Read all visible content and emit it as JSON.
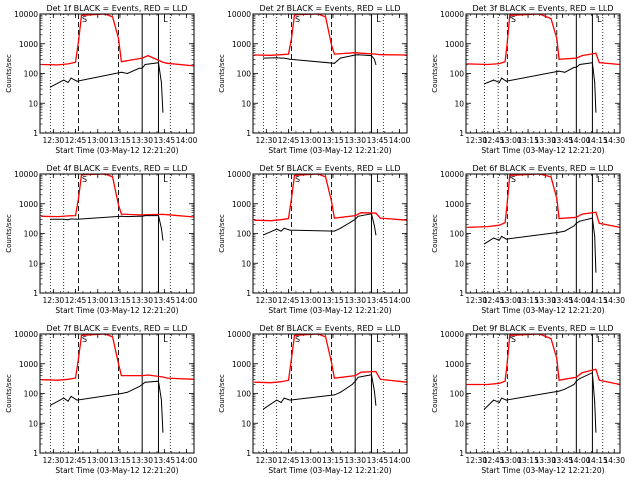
{
  "chart_data": [
    {
      "type": "line",
      "title": "Det 1f BLACK = Events, RED = LLD",
      "xlabel": "Start Time (03-May-12 12:21:20)",
      "ylabel": "Counts/sec",
      "yscale": "log",
      "ylim": [
        1,
        10000
      ],
      "xlim": [
        "12:21",
        "14:05"
      ],
      "x_ticks": [
        "12:30",
        "12:45",
        "13:00",
        "13:15",
        "13:30",
        "13:45",
        "14:00"
      ],
      "y_ticks": [
        "1",
        "10",
        "100",
        "1000",
        "10000"
      ],
      "markers": {
        "dotted": [
          "12:28",
          "12:37",
          "13:49"
        ],
        "dashed": [
          "12:47",
          "13:14"
        ],
        "solid": [
          "13:30",
          "13:41"
        ],
        "top_labels": [
          "S",
          "L"
        ]
      },
      "series": [
        {
          "color": "#ff0000",
          "x": [
            "12:22",
            "12:33",
            "12:40",
            "12:45",
            "12:47",
            "12:49",
            "13:05",
            "13:10",
            "13:14",
            "13:16",
            "13:30",
            "13:34",
            "13:44",
            "13:47",
            "14:05"
          ],
          "y": [
            200,
            195,
            210,
            240,
            1200,
            9000,
            11000,
            8000,
            1500,
            250,
            330,
            400,
            240,
            220,
            180
          ]
        },
        {
          "color": "#000000",
          "x": [
            "12:28",
            "12:37",
            "12:40",
            "12:42",
            "12:46",
            "13:16",
            "13:20",
            "13:28",
            "13:30",
            "13:32",
            "13:41",
            "13:43",
            "13:44"
          ],
          "y": [
            35,
            60,
            50,
            70,
            55,
            110,
            100,
            150,
            150,
            200,
            230,
            50,
            5
          ]
        }
      ]
    },
    {
      "type": "line",
      "title": "Det 2f BLACK = Events, RED = LLD",
      "xlabel": "Start Time (03-May-12 12:21:20)",
      "ylabel": "Counts/sec",
      "yscale": "log",
      "ylim": [
        1,
        10000
      ],
      "xlim": [
        "12:21",
        "14:05"
      ],
      "x_ticks": [
        "12:30",
        "12:45",
        "13:00",
        "13:15",
        "13:30",
        "13:45",
        "14:00"
      ],
      "y_ticks": [
        "1",
        "10",
        "100",
        "1000",
        "10000"
      ],
      "markers": {
        "dotted": [
          "12:28",
          "12:37",
          "13:49"
        ],
        "dashed": [
          "12:47",
          "13:14"
        ],
        "solid": [
          "13:30",
          "13:41"
        ],
        "top_labels": [
          "S",
          "L"
        ]
      },
      "series": [
        {
          "color": "#ff0000",
          "x": [
            "12:22",
            "12:33",
            "12:40",
            "12:45",
            "12:47",
            "12:49",
            "13:05",
            "13:10",
            "13:14",
            "13:16",
            "13:30",
            "13:34",
            "13:44",
            "13:47",
            "14:05"
          ],
          "y": [
            420,
            410,
            430,
            450,
            1500,
            9500,
            11000,
            8000,
            900,
            450,
            500,
            480,
            450,
            430,
            420
          ]
        },
        {
          "color": "#000000",
          "x": [
            "12:28",
            "12:37",
            "12:40",
            "12:42",
            "12:46",
            "13:16",
            "13:20",
            "13:28",
            "13:30",
            "13:32",
            "13:41",
            "13:43",
            "13:44"
          ],
          "y": [
            330,
            340,
            330,
            330,
            300,
            220,
            330,
            400,
            420,
            430,
            400,
            300,
            200
          ]
        }
      ]
    },
    {
      "type": "line",
      "title": "Det 3f BLACK = Events, RED = LLD",
      "xlabel": "Start Time (03-May-12 12:21:20)",
      "ylabel": "Counts/sec",
      "yscale": "log",
      "ylim": [
        1,
        10000
      ],
      "xlim": [
        "12:21",
        "14:35"
      ],
      "x_ticks": [
        "12:30",
        "12:45",
        "13:00",
        "13:15",
        "13:30",
        "13:45",
        "14:00",
        "14:15",
        "14:30"
      ],
      "y_ticks": [
        "1",
        "10",
        "100",
        "1000",
        "10000"
      ],
      "markers": {
        "dotted": [
          "12:37",
          "12:49",
          "14:20"
        ],
        "dashed": [
          "12:57",
          "13:40"
        ],
        "solid": [
          "13:57",
          "14:11"
        ],
        "top_labels": [
          "S",
          "L"
        ]
      },
      "series": [
        {
          "color": "#ff0000",
          "x": [
            "12:22",
            "12:40",
            "12:50",
            "12:55",
            "12:57",
            "12:59",
            "13:25",
            "13:35",
            "13:40",
            "13:42",
            "13:57",
            "14:02",
            "14:14",
            "14:17",
            "14:35"
          ],
          "y": [
            210,
            200,
            215,
            250,
            1200,
            9000,
            11000,
            7000,
            1500,
            300,
            330,
            400,
            480,
            230,
            200
          ]
        },
        {
          "color": "#000000",
          "x": [
            "12:37",
            "12:45",
            "12:50",
            "12:52",
            "12:56",
            "13:42",
            "13:47",
            "13:55",
            "13:57",
            "14:00",
            "14:11",
            "14:13",
            "14:14"
          ],
          "y": [
            45,
            60,
            50,
            70,
            55,
            120,
            110,
            160,
            160,
            200,
            230,
            50,
            5
          ]
        }
      ]
    },
    {
      "type": "line",
      "title": "Det 4f BLACK = Events, RED = LLD",
      "xlabel": "Start Time (03-May-12 12:21:20)",
      "ylabel": "Counts/sec",
      "yscale": "log",
      "ylim": [
        1,
        10000
      ],
      "xlim": [
        "12:21",
        "14:05"
      ],
      "x_ticks": [
        "12:30",
        "12:45",
        "13:00",
        "13:15",
        "13:30",
        "13:45",
        "14:00"
      ],
      "y_ticks": [
        "1",
        "10",
        "100",
        "1000",
        "10000"
      ],
      "markers": {
        "dotted": [
          "12:28",
          "12:37",
          "13:49"
        ],
        "dashed": [
          "12:47",
          "13:14"
        ],
        "solid": [
          "13:30",
          "13:41"
        ],
        "top_labels": [
          "S",
          "L"
        ]
      },
      "series": [
        {
          "color": "#ff0000",
          "x": [
            "12:22",
            "12:33",
            "12:40",
            "12:45",
            "12:47",
            "12:49",
            "13:05",
            "13:10",
            "13:14",
            "13:16",
            "13:30",
            "13:34",
            "13:44",
            "13:47",
            "14:05"
          ],
          "y": [
            380,
            370,
            390,
            400,
            1500,
            9500,
            11000,
            8000,
            900,
            450,
            420,
            430,
            440,
            430,
            360
          ]
        },
        {
          "color": "#000000",
          "x": [
            "12:28",
            "12:37",
            "12:40",
            "12:42",
            "12:46",
            "13:16",
            "13:20",
            "13:28",
            "13:30",
            "13:32",
            "13:41",
            "13:43",
            "13:44"
          ],
          "y": [
            300,
            300,
            290,
            310,
            300,
            380,
            370,
            380,
            380,
            400,
            400,
            150,
            60
          ]
        }
      ]
    },
    {
      "type": "line",
      "title": "Det 5f BLACK = Events, RED = LLD",
      "xlabel": "Start Time (03-May-12 12:21:20)",
      "ylabel": "Counts/sec",
      "yscale": "log",
      "ylim": [
        1,
        10000
      ],
      "xlim": [
        "12:21",
        "14:05"
      ],
      "x_ticks": [
        "12:30",
        "12:45",
        "13:00",
        "13:15",
        "13:30",
        "13:45",
        "14:00"
      ],
      "y_ticks": [
        "1",
        "10",
        "100",
        "1000",
        "10000"
      ],
      "markers": {
        "dotted": [
          "12:28",
          "12:37",
          "13:49"
        ],
        "dashed": [
          "12:47",
          "13:14"
        ],
        "solid": [
          "13:30",
          "13:41"
        ],
        "top_labels": [
          "S",
          "L"
        ]
      },
      "series": [
        {
          "color": "#ff0000",
          "x": [
            "12:22",
            "12:33",
            "12:40",
            "12:45",
            "12:47",
            "12:49",
            "13:05",
            "13:10",
            "13:14",
            "13:16",
            "13:30",
            "13:34",
            "13:44",
            "13:47",
            "14:05"
          ],
          "y": [
            280,
            270,
            290,
            320,
            1500,
            9000,
            11000,
            8000,
            1200,
            330,
            400,
            500,
            480,
            330,
            280
          ]
        },
        {
          "color": "#000000",
          "x": [
            "12:28",
            "12:37",
            "12:40",
            "12:42",
            "12:46",
            "13:16",
            "13:20",
            "13:28",
            "13:30",
            "13:32",
            "13:41",
            "13:43",
            "13:44"
          ],
          "y": [
            90,
            140,
            120,
            150,
            130,
            120,
            150,
            260,
            300,
            380,
            460,
            180,
            90
          ]
        }
      ]
    },
    {
      "type": "line",
      "title": "Det 6f BLACK = Events, RED = LLD",
      "xlabel": "Start Time (03-May-12 12:21:20)",
      "ylabel": "Counts/sec",
      "yscale": "log",
      "ylim": [
        1,
        10000
      ],
      "xlim": [
        "12:21",
        "14:35"
      ],
      "x_ticks": [
        "12:30",
        "12:45",
        "13:00",
        "13:15",
        "13:30",
        "13:45",
        "14:00",
        "14:15",
        "14:30"
      ],
      "y_ticks": [
        "1",
        "10",
        "100",
        "1000",
        "10000"
      ],
      "markers": {
        "dotted": [
          "12:37",
          "12:49",
          "14:20"
        ],
        "dashed": [
          "12:57",
          "13:40"
        ],
        "solid": [
          "13:57",
          "14:11"
        ],
        "top_labels": [
          "S",
          "L"
        ]
      },
      "series": [
        {
          "color": "#ff0000",
          "x": [
            "12:22",
            "12:40",
            "12:50",
            "12:55",
            "12:57",
            "12:59",
            "13:25",
            "13:35",
            "13:40",
            "13:42",
            "13:57",
            "14:02",
            "14:14",
            "14:17",
            "14:35"
          ],
          "y": [
            160,
            170,
            190,
            230,
            1200,
            9000,
            11000,
            8000,
            1500,
            320,
            350,
            450,
            520,
            220,
            160
          ]
        },
        {
          "color": "#000000",
          "x": [
            "12:37",
            "12:45",
            "12:50",
            "12:52",
            "12:56",
            "13:42",
            "13:47",
            "13:55",
            "13:57",
            "14:00",
            "14:11",
            "14:13",
            "14:14"
          ],
          "y": [
            45,
            70,
            60,
            80,
            65,
            110,
            120,
            180,
            220,
            260,
            330,
            80,
            5
          ]
        }
      ]
    },
    {
      "type": "line",
      "title": "Det 7f BLACK = Events, RED = LLD",
      "xlabel": "Start Time (03-May-12 12:21:20)",
      "ylabel": "Counts/sec",
      "yscale": "log",
      "ylim": [
        1,
        10000
      ],
      "xlim": [
        "12:21",
        "14:05"
      ],
      "x_ticks": [
        "12:30",
        "12:45",
        "13:00",
        "13:15",
        "13:30",
        "13:45",
        "14:00"
      ],
      "y_ticks": [
        "1",
        "10",
        "100",
        "1000",
        "10000"
      ],
      "markers": {
        "dotted": [
          "12:28",
          "12:37",
          "13:49"
        ],
        "dashed": [
          "12:47",
          "13:14"
        ],
        "solid": [
          "13:30",
          "13:41"
        ],
        "top_labels": [
          "S",
          "L"
        ]
      },
      "series": [
        {
          "color": "#ff0000",
          "x": [
            "12:22",
            "12:33",
            "12:40",
            "12:45",
            "12:47",
            "12:49",
            "13:05",
            "13:10",
            "13:14",
            "13:16",
            "13:30",
            "13:34",
            "13:44",
            "13:47",
            "14:05"
          ],
          "y": [
            290,
            280,
            300,
            330,
            1500,
            9000,
            11000,
            8000,
            1000,
            400,
            400,
            420,
            360,
            330,
            300
          ]
        },
        {
          "color": "#000000",
          "x": [
            "12:28",
            "12:37",
            "12:40",
            "12:42",
            "12:46",
            "13:16",
            "13:20",
            "13:28",
            "13:30",
            "13:32",
            "13:41",
            "13:43",
            "13:44"
          ],
          "y": [
            40,
            70,
            55,
            80,
            60,
            100,
            110,
            170,
            200,
            240,
            260,
            60,
            5
          ]
        }
      ]
    },
    {
      "type": "line",
      "title": "Det 8f BLACK = Events, RED = LLD",
      "xlabel": "Start Time (03-May-12 12:21:20)",
      "ylabel": "Counts/sec",
      "yscale": "log",
      "ylim": [
        1,
        10000
      ],
      "xlim": [
        "12:21",
        "14:05"
      ],
      "x_ticks": [
        "12:30",
        "12:45",
        "13:00",
        "13:15",
        "13:30",
        "13:45",
        "14:00"
      ],
      "y_ticks": [
        "1",
        "10",
        "100",
        "1000",
        "10000"
      ],
      "markers": {
        "dotted": [
          "12:28",
          "12:37",
          "13:49"
        ],
        "dashed": [
          "12:47",
          "13:14"
        ],
        "solid": [
          "13:30",
          "13:41"
        ],
        "top_labels": [
          "S",
          "L"
        ]
      },
      "series": [
        {
          "color": "#ff0000",
          "x": [
            "12:22",
            "12:33",
            "12:40",
            "12:45",
            "12:47",
            "12:49",
            "13:05",
            "13:10",
            "13:14",
            "13:16",
            "13:30",
            "13:34",
            "13:44",
            "13:47",
            "14:05"
          ],
          "y": [
            240,
            230,
            250,
            280,
            1500,
            9000,
            11000,
            8000,
            1100,
            330,
            400,
            520,
            550,
            300,
            240
          ]
        },
        {
          "color": "#000000",
          "x": [
            "12:28",
            "12:37",
            "12:40",
            "12:42",
            "12:46",
            "13:16",
            "13:20",
            "13:28",
            "13:30",
            "13:32",
            "13:41",
            "13:43",
            "13:44"
          ],
          "y": [
            30,
            60,
            50,
            70,
            60,
            90,
            110,
            200,
            260,
            350,
            430,
            120,
            40
          ]
        }
      ]
    },
    {
      "type": "line",
      "title": "Det 9f BLACK = Events, RED = LLD",
      "xlabel": "Start Time (03-May-12 12:21:20)",
      "ylabel": "Counts/sec",
      "yscale": "log",
      "ylim": [
        1,
        10000
      ],
      "xlim": [
        "12:21",
        "14:35"
      ],
      "x_ticks": [
        "12:30",
        "12:45",
        "13:00",
        "13:15",
        "13:30",
        "13:45",
        "14:00",
        "14:15",
        "14:30"
      ],
      "y_ticks": [
        "1",
        "10",
        "100",
        "1000",
        "10000"
      ],
      "markers": {
        "dotted": [
          "12:37",
          "12:49",
          "14:20"
        ],
        "dashed": [
          "12:57",
          "13:40"
        ],
        "solid": [
          "13:57",
          "14:11"
        ],
        "top_labels": [
          "S",
          "L"
        ]
      },
      "series": [
        {
          "color": "#ff0000",
          "x": [
            "12:22",
            "12:40",
            "12:50",
            "12:55",
            "12:57",
            "12:59",
            "13:25",
            "13:35",
            "13:40",
            "13:42",
            "13:57",
            "14:02",
            "14:14",
            "14:17",
            "14:35"
          ],
          "y": [
            200,
            200,
            220,
            260,
            1200,
            9000,
            11000,
            7000,
            1500,
            280,
            350,
            500,
            650,
            280,
            200
          ]
        },
        {
          "color": "#000000",
          "x": [
            "12:37",
            "12:45",
            "12:50",
            "12:52",
            "12:56",
            "13:42",
            "13:47",
            "13:55",
            "13:57",
            "14:00",
            "14:11",
            "14:13",
            "14:14"
          ],
          "y": [
            30,
            60,
            50,
            70,
            60,
            120,
            140,
            200,
            260,
            320,
            500,
            50,
            5
          ]
        }
      ]
    }
  ]
}
